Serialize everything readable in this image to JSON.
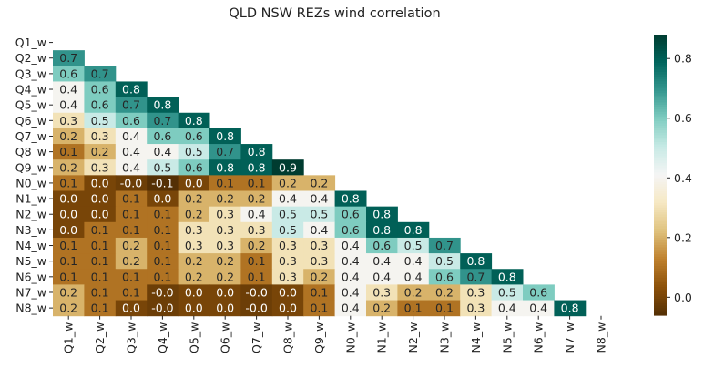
{
  "chart_data": {
    "type": "heatmap",
    "title": "QLD NSW REZs wind correlation",
    "xlabel": "",
    "ylabel": "",
    "labels": [
      "Q1_w",
      "Q2_w",
      "Q3_w",
      "Q4_w",
      "Q5_w",
      "Q6_w",
      "Q7_w",
      "Q8_w",
      "Q9_w",
      "N0_w",
      "N1_w",
      "N2_w",
      "N3_w",
      "N4_w",
      "N5_w",
      "N6_w",
      "N7_w",
      "N8_w"
    ],
    "mask": "upper triangle including diagonal",
    "lower_triangle_annotations": [
      [],
      [
        "0.7"
      ],
      [
        "0.6",
        "0.7"
      ],
      [
        "0.4",
        "0.6",
        "0.8"
      ],
      [
        "0.4",
        "0.6",
        "0.7",
        "0.8"
      ],
      [
        "0.3",
        "0.5",
        "0.6",
        "0.7",
        "0.8"
      ],
      [
        "0.2",
        "0.3",
        "0.4",
        "0.6",
        "0.6",
        "0.8"
      ],
      [
        "0.1",
        "0.2",
        "0.4",
        "0.4",
        "0.5",
        "0.7",
        "0.8"
      ],
      [
        "0.2",
        "0.3",
        "0.4",
        "0.5",
        "0.6",
        "0.8",
        "0.8",
        "0.9"
      ],
      [
        "0.1",
        "0.0",
        "-0.0",
        "-0.1",
        "0.0",
        "0.1",
        "0.1",
        "0.2",
        "0.2"
      ],
      [
        "0.0",
        "0.0",
        "0.1",
        "0.0",
        "0.2",
        "0.2",
        "0.2",
        "0.4",
        "0.4",
        "0.8"
      ],
      [
        "0.0",
        "0.0",
        "0.1",
        "0.1",
        "0.2",
        "0.3",
        "0.4",
        "0.5",
        "0.5",
        "0.6",
        "0.8"
      ],
      [
        "0.0",
        "0.1",
        "0.1",
        "0.1",
        "0.3",
        "0.3",
        "0.3",
        "0.5",
        "0.4",
        "0.6",
        "0.8",
        "0.8"
      ],
      [
        "0.1",
        "0.1",
        "0.2",
        "0.1",
        "0.3",
        "0.3",
        "0.2",
        "0.3",
        "0.3",
        "0.4",
        "0.6",
        "0.5",
        "0.7"
      ],
      [
        "0.1",
        "0.1",
        "0.2",
        "0.1",
        "0.2",
        "0.2",
        "0.1",
        "0.3",
        "0.3",
        "0.4",
        "0.4",
        "0.4",
        "0.5",
        "0.8"
      ],
      [
        "0.1",
        "0.1",
        "0.1",
        "0.1",
        "0.2",
        "0.2",
        "0.1",
        "0.3",
        "0.2",
        "0.4",
        "0.4",
        "0.4",
        "0.6",
        "0.7",
        "0.8"
      ],
      [
        "0.2",
        "0.1",
        "0.1",
        "-0.0",
        "0.0",
        "0.0",
        "-0.0",
        "0.0",
        "0.1",
        "0.4",
        "0.3",
        "0.2",
        "0.2",
        "0.3",
        "0.5",
        "0.6"
      ],
      [
        "0.2",
        "0.1",
        "0.0",
        "-0.0",
        "0.0",
        "0.0",
        "-0.0",
        "0.0",
        "0.1",
        "0.4",
        "0.2",
        "0.1",
        "0.1",
        "0.3",
        "0.4",
        "0.4",
        "0.8"
      ]
    ],
    "colormap": "BrBG",
    "colormap_stops": [
      "#543005",
      "#8c510a",
      "#bf812d",
      "#dfc27d",
      "#f6e8c3",
      "#f5f5f5",
      "#c7eae5",
      "#80cdc1",
      "#35978f",
      "#01665e",
      "#003c30"
    ],
    "color_range": [
      -0.06,
      0.88
    ],
    "colorbar_ticks": [
      "0.0",
      "0.2",
      "0.4",
      "0.6",
      "0.8"
    ],
    "colorbar_position": "right",
    "grid": false
  }
}
